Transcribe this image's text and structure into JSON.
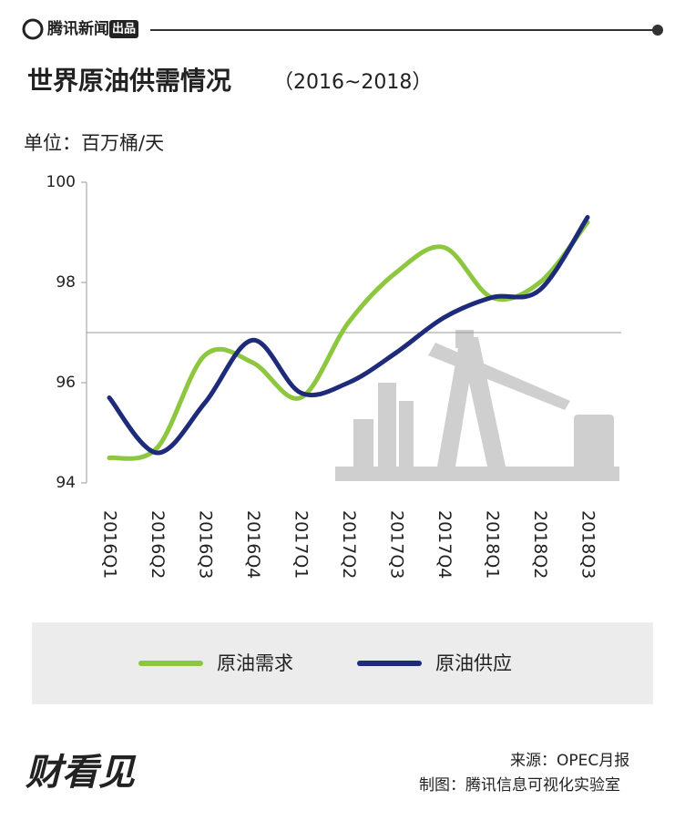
{
  "header": {
    "brand": "腾讯新闻",
    "tag": "出品"
  },
  "chart_data": {
    "type": "line",
    "title": "世界原油供需情况",
    "subtitle": "（2016~2018）",
    "unit_label": "单位：百万桶/天",
    "categories": [
      "2016Q1",
      "2016Q2",
      "2016Q3",
      "2016Q4",
      "2017Q1",
      "2017Q2",
      "2017Q3",
      "2017Q4",
      "2018Q1",
      "2018Q2",
      "2018Q3"
    ],
    "series": [
      {
        "name": "原油需求",
        "color": "#8dc63f",
        "values": [
          94.5,
          94.7,
          96.55,
          96.4,
          95.7,
          97.2,
          98.2,
          98.7,
          97.7,
          98.0,
          99.2
        ]
      },
      {
        "name": "原油供应",
        "color": "#1d2b7a",
        "values": [
          95.7,
          94.6,
          95.6,
          96.85,
          95.8,
          96.0,
          96.6,
          97.3,
          97.7,
          97.85,
          99.3
        ]
      }
    ],
    "ylim": [
      94,
      100
    ],
    "yticks": [
      94,
      96,
      98,
      100
    ]
  },
  "footer": {
    "source": "来源：OPEC月报",
    "credit": "制图：腾讯信息可视化实验室",
    "logo": "财看见"
  }
}
